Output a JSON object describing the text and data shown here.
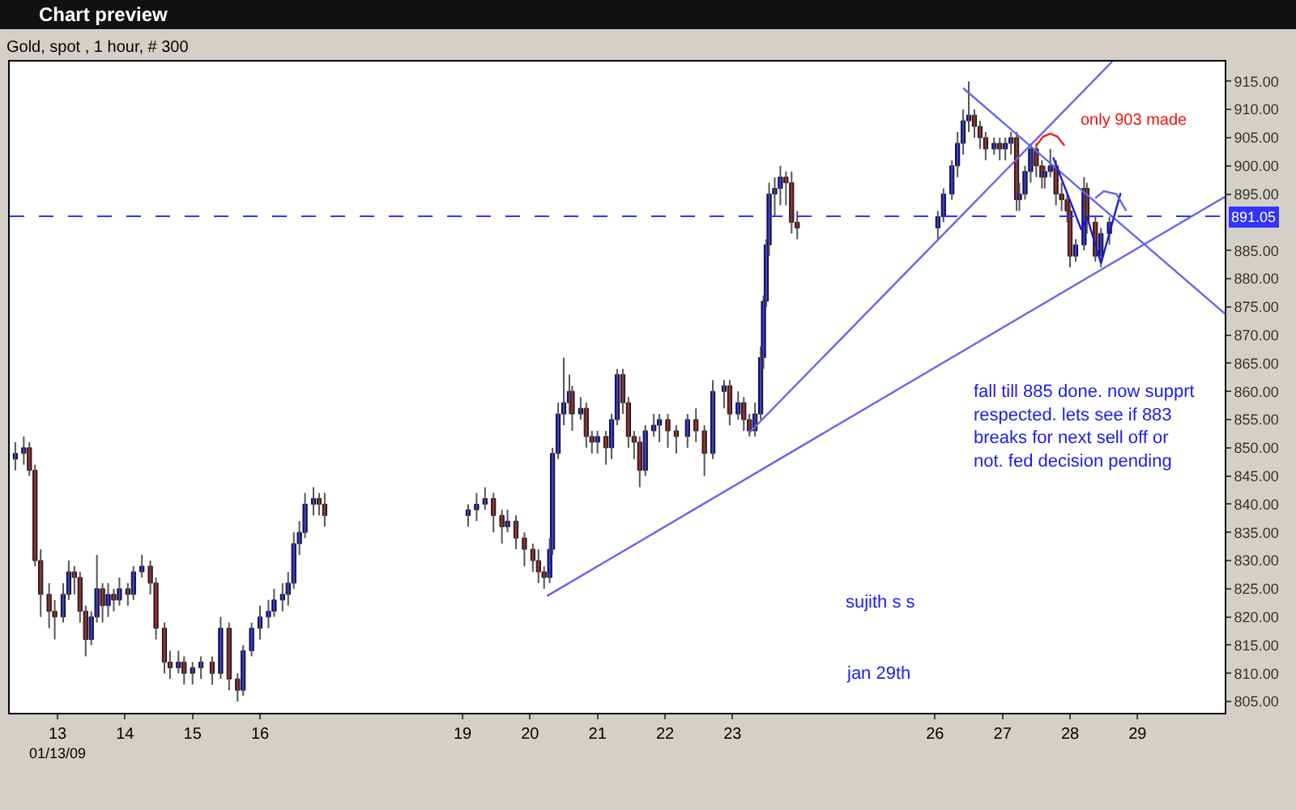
{
  "chart_data": {
    "type": "candlestick",
    "title": "Chart preview",
    "subtitle": "Gold, spot , 1 hour, # 300",
    "annotations": [
      "only 903 made",
      "fall till 885 done. now supprt\nrespected. lets see if 883\nbreaks for next sell off or\nnot. fed decision pending",
      "sujith s s",
      "jan 29th",
      "01/13/09"
    ],
    "x": [
      "--01-12T09:00",
      "--01-12T12:00",
      "--01-12T14:00",
      "--01-12T16:00",
      "--01-12T18:00",
      "--01-12T21:00",
      "--01-12T23:00",
      "--01-13T02:00",
      "--01-13T04:00",
      "--01-13T06:00",
      "--01-13T08:00",
      "--01-13T10:00",
      "--01-13T12:00",
      "--01-13T14:00",
      "--01-13T16:00",
      "--01-13T18:00",
      "--01-13T20:00",
      "--01-13T22:00",
      "--01-14T01:00",
      "--01-14T03:00",
      "--01-14T06:00",
      "--01-14T09:00",
      "--01-14T11:00",
      "--01-14T14:00",
      "--01-14T16:00",
      "--01-14T19:00",
      "--01-14T21:00",
      "--01-15T00:00",
      "--01-15T03:00",
      "--01-15T07:00",
      "--01-15T10:00",
      "--01-15T13:00",
      "--01-15T16:00",
      "--01-15T18:00",
      "--01-15T21:00",
      "--01-16T00:00",
      "--01-16T03:00",
      "--01-16T05:00",
      "--01-16T08:00",
      "--01-16T10:00",
      "--01-16T12:00",
      "--01-16T14:00",
      "--01-16T16:00",
      "--01-16T19:00",
      "--01-16T21:00",
      "--01-16T23:00",
      "--01-19T02:00",
      "--01-19T05:00",
      "--01-19T08:00",
      "--01-19T11:00",
      "--01-19T14:00",
      "--01-19T16:00",
      "--01-19T19:00",
      "--01-19T22:00",
      "--01-20T01:00",
      "--01-20T03:00",
      "--01-20T05:00",
      "--01-20T07:00",
      "--01-20T08:00",
      "--01-20T10:00",
      "--01-20T12:00",
      "--01-20T14:00",
      "--01-20T15:00",
      "--01-20T18:00",
      "--01-20T20:00",
      "--01-20T22:00",
      "--01-21T00:00",
      "--01-21T03:00",
      "--01-21T05:00",
      "--01-21T07:00",
      "--01-21T09:00",
      "--01-21T11:00",
      "--01-21T13:00",
      "--01-21T15:00",
      "--01-21T17:00",
      "--01-21T20:00",
      "--01-21T22:00",
      "--01-22T01:00",
      "--01-22T04:00",
      "--01-22T08:00",
      "--01-22T11:00",
      "--01-22T14:00",
      "--01-22T17:00",
      "--01-22T21:00",
      "--01-22T23:00",
      "--01-23T02:00",
      "--01-23T04:00",
      "--01-23T06:00",
      "--01-23T08:00",
      "--01-23T10:00",
      "--01-23T11:00",
      "--01-23T12:00",
      "--01-23T13:00",
      "--01-23T15:00",
      "--01-23T17:00",
      "--01-23T19:00",
      "--01-23T21:00",
      "--01-23T23:00",
      "--01-26T01:00",
      "--01-26T03:00",
      "--01-26T06:00",
      "--01-26T08:00",
      "--01-26T10:00",
      "--01-26T12:00",
      "--01-26T14:00",
      "--01-26T16:00",
      "--01-26T18:00",
      "--01-26T21:00",
      "--01-26T23:00",
      "--01-27T01:00",
      "--01-27T03:00",
      "--01-27T05:00",
      "--01-27T06:00",
      "--01-27T08:00",
      "--01-27T10:00",
      "--01-27T12:00",
      "--01-27T14:00",
      "--01-27T15:00",
      "--01-27T17:00",
      "--01-27T19:00",
      "--01-27T21:00",
      "--01-27T23:00",
      "--01-28T00:00",
      "--01-28T02:00",
      "--01-28T05:00",
      "--01-28T06:00",
      "--01-28T09:00",
      "--01-28T11:00",
      "--01-28T14:00"
    ],
    "ohlc": [
      [
        848,
        851,
        846,
        849
      ],
      [
        849,
        852,
        847,
        850
      ],
      [
        850,
        851,
        845,
        846
      ],
      [
        846,
        847,
        829,
        830
      ],
      [
        830,
        832,
        820,
        824
      ],
      [
        824,
        826,
        818,
        821
      ],
      [
        821,
        823,
        816,
        820
      ],
      [
        820,
        826,
        819,
        824
      ],
      [
        824,
        830,
        823,
        828
      ],
      [
        828,
        829,
        824,
        827
      ],
      [
        827,
        828,
        819,
        821
      ],
      [
        821,
        822,
        813,
        816
      ],
      [
        816,
        821,
        815,
        820
      ],
      [
        820,
        831,
        819,
        825
      ],
      [
        825,
        826,
        819,
        822
      ],
      [
        822,
        826,
        820,
        824
      ],
      [
        824,
        825,
        821,
        823
      ],
      [
        823,
        827,
        822,
        825
      ],
      [
        825,
        826,
        822,
        824
      ],
      [
        824,
        829,
        823,
        828
      ],
      [
        828,
        831,
        827,
        829
      ],
      [
        829,
        830,
        824,
        826
      ],
      [
        826,
        827,
        816,
        818
      ],
      [
        818,
        819,
        810,
        812
      ],
      [
        812,
        814,
        809,
        811
      ],
      [
        811,
        814,
        810,
        812
      ],
      [
        812,
        813,
        808,
        810
      ],
      [
        810,
        812,
        808,
        811
      ],
      [
        811,
        813,
        809,
        812
      ],
      [
        812,
        813,
        808,
        810
      ],
      [
        810,
        820,
        809,
        818
      ],
      [
        818,
        819,
        807,
        809
      ],
      [
        809,
        810,
        805,
        807
      ],
      [
        807,
        815,
        806,
        814
      ],
      [
        814,
        819,
        813,
        818
      ],
      [
        818,
        822,
        816,
        820
      ],
      [
        820,
        823,
        818,
        821
      ],
      [
        821,
        825,
        820,
        823
      ],
      [
        823,
        826,
        821,
        824
      ],
      [
        824,
        828,
        822,
        826
      ],
      [
        826,
        835,
        825,
        833
      ],
      [
        833,
        837,
        831,
        835
      ],
      [
        835,
        842,
        834,
        840
      ],
      [
        840,
        843,
        838,
        841
      ],
      [
        841,
        842,
        838,
        840
      ],
      [
        840,
        842,
        836,
        838
      ],
      [
        838,
        840,
        836,
        839
      ],
      [
        839,
        842,
        837,
        840
      ],
      [
        840,
        843,
        839,
        841
      ],
      [
        841,
        842,
        835,
        838
      ],
      [
        838,
        839,
        833,
        836
      ],
      [
        836,
        839,
        835,
        837
      ],
      [
        837,
        838,
        832,
        834
      ],
      [
        834,
        835,
        829,
        832
      ],
      [
        832,
        833,
        828,
        830
      ],
      [
        830,
        832,
        826,
        828
      ],
      [
        828,
        829,
        825,
        827
      ],
      [
        827,
        834,
        826,
        832
      ],
      [
        832,
        850,
        831,
        849
      ],
      [
        849,
        858,
        848,
        856
      ],
      [
        856,
        866,
        854,
        858
      ],
      [
        858,
        863,
        856,
        860
      ],
      [
        860,
        861,
        853,
        856
      ],
      [
        856,
        859,
        855,
        857
      ],
      [
        857,
        858,
        850,
        852
      ],
      [
        852,
        853,
        849,
        851
      ],
      [
        851,
        853,
        849,
        852
      ],
      [
        852,
        853,
        847,
        850
      ],
      [
        850,
        856,
        848,
        855
      ],
      [
        855,
        864,
        854,
        863
      ],
      [
        863,
        864,
        856,
        858
      ],
      [
        858,
        859,
        850,
        852
      ],
      [
        852,
        853,
        848,
        851
      ],
      [
        851,
        852,
        843,
        846
      ],
      [
        846,
        854,
        845,
        853
      ],
      [
        853,
        856,
        852,
        854
      ],
      [
        854,
        856,
        851,
        855
      ],
      [
        855,
        856,
        850,
        853
      ],
      [
        853,
        854,
        849,
        852
      ],
      [
        852,
        856,
        850,
        855
      ],
      [
        855,
        857,
        851,
        853
      ],
      [
        853,
        854,
        845,
        849
      ],
      [
        849,
        862,
        848,
        860
      ],
      [
        860,
        862,
        857,
        861
      ],
      [
        861,
        862,
        854,
        856
      ],
      [
        856,
        860,
        855,
        858
      ],
      [
        858,
        859,
        853,
        855
      ],
      [
        855,
        856,
        852,
        853
      ],
      [
        853,
        858,
        852,
        856
      ],
      [
        856,
        868,
        855,
        866
      ],
      [
        866,
        877,
        864,
        876
      ],
      [
        876,
        887,
        875,
        886
      ],
      [
        886,
        897,
        884,
        895
      ],
      [
        895,
        898,
        891,
        896
      ],
      [
        896,
        900,
        893,
        898
      ],
      [
        898,
        899,
        893,
        897
      ],
      [
        897,
        899,
        888,
        890
      ],
      [
        890,
        892,
        887,
        889
      ],
      [
        889,
        892,
        887,
        891
      ],
      [
        891,
        896,
        890,
        895
      ],
      [
        895,
        901,
        894,
        900
      ],
      [
        900,
        906,
        898,
        904
      ],
      [
        904,
        910,
        902,
        908
      ],
      [
        908,
        915,
        906,
        909
      ],
      [
        909,
        910,
        905,
        907
      ],
      [
        907,
        908,
        903,
        905
      ],
      [
        905,
        906,
        901,
        903
      ],
      [
        903,
        905,
        902,
        904
      ],
      [
        904,
        905,
        901,
        903
      ],
      [
        903,
        905,
        901,
        904
      ],
      [
        904,
        906,
        902,
        905
      ],
      [
        905,
        906,
        892,
        894
      ],
      [
        894,
        897,
        892,
        895
      ],
      [
        895,
        900,
        894,
        899
      ],
      [
        899,
        904,
        897,
        903
      ],
      [
        903,
        904,
        898,
        900
      ],
      [
        900,
        901,
        896,
        898
      ],
      [
        898,
        900,
        896,
        899
      ],
      [
        899,
        903,
        898,
        900
      ],
      [
        900,
        901,
        893,
        895
      ],
      [
        895,
        897,
        892,
        894
      ],
      [
        894,
        895,
        890,
        892
      ],
      [
        892,
        893,
        882,
        884
      ],
      [
        884,
        887,
        883,
        886
      ],
      [
        886,
        898,
        885,
        896
      ],
      [
        896,
        897,
        888,
        890
      ],
      [
        890,
        891,
        883,
        884
      ],
      [
        884,
        889,
        882,
        888
      ],
      [
        888,
        891,
        886,
        890
      ]
    ],
    "series": [
      {
        "type": "line",
        "color": "#6666ee",
        "x": [
          "--01-20T06:00",
          "--01-30T07:00"
        ],
        "values": [
          823.7,
          894.5
        ]
      },
      {
        "type": "line",
        "color": "#6666ee",
        "x": [
          "--01-23T06:00",
          "--01-28T15:00"
        ],
        "values": [
          852.7,
          918.5
        ]
      },
      {
        "type": "line",
        "color": "#6666ee",
        "x": [
          "--01-26T10:00",
          "--01-30T07:00"
        ],
        "values": [
          913.8,
          873.8
        ]
      },
      {
        "type": "line",
        "color": "#1a1ad6",
        "x": [
          "--01-27T18:00",
          "--01-28T04:00",
          "--01-28T06:00",
          "--01-28T11:00",
          "--01-28T18:00"
        ],
        "values": [
          901.5,
          888.7,
          891,
          882.7,
          895.2
        ]
      },
      {
        "type": "line",
        "color": "#6666ee",
        "x": [
          "--01-28T09:00",
          "--01-28T12:00",
          "--01-28T16:30",
          "--01-28T20:00"
        ],
        "values": [
          894.3,
          895.5,
          895,
          892
        ]
      },
      {
        "type": "line",
        "color": "#ee2222",
        "x": [
          "--01-27T12:00",
          "--01-27T14:30",
          "--01-27T17:00",
          "--01-27T19:30",
          "--01-27T22:00"
        ],
        "values": [
          903.6,
          905.2,
          905.7,
          905.2,
          903.6
        ]
      }
    ],
    "xlim": [
      "--01-12T07:00",
      "--01-30T07:00"
    ],
    "xticks": [
      {
        "value": "--01-13",
        "label": "13"
      },
      {
        "value": "--01-14",
        "label": "14"
      },
      {
        "value": "--01-15",
        "label": "15"
      },
      {
        "value": "--01-16",
        "label": "16"
      },
      {
        "value": "--01-19",
        "label": "19"
      },
      {
        "value": "--01-20",
        "label": "20"
      },
      {
        "value": "--01-21",
        "label": "21"
      },
      {
        "value": "--01-22",
        "label": "22"
      },
      {
        "value": "--01-23",
        "label": "23"
      },
      {
        "value": "--01-26",
        "label": "26"
      },
      {
        "value": "--01-27",
        "label": "27"
      },
      {
        "value": "--01-28",
        "label": "28"
      },
      {
        "value": "--01-29",
        "label": "29"
      }
    ],
    "ylim": [
      803,
      918.5
    ],
    "yticks": [
      {
        "value": 805,
        "label": "805.00"
      },
      {
        "value": 810,
        "label": "810.00"
      },
      {
        "value": 815,
        "label": "815.00"
      },
      {
        "value": 820,
        "label": "820.00"
      },
      {
        "value": 825,
        "label": "825.00"
      },
      {
        "value": 830,
        "label": "830.00"
      },
      {
        "value": 835,
        "label": "835.00"
      },
      {
        "value": 840,
        "label": "840.00"
      },
      {
        "value": 845,
        "label": "845.00"
      },
      {
        "value": 850,
        "label": "850.00"
      },
      {
        "value": 855,
        "label": "855.00"
      },
      {
        "value": 860,
        "label": "860.00"
      },
      {
        "value": 865,
        "label": "865.00"
      },
      {
        "value": 870,
        "label": "870.00"
      },
      {
        "value": 875,
        "label": "875.00"
      },
      {
        "value": 880,
        "label": "880.00"
      },
      {
        "value": 885,
        "label": "885.00"
      },
      {
        "value": 895,
        "label": "895.00"
      },
      {
        "value": 900,
        "label": "900.00"
      },
      {
        "value": 905,
        "label": "905.00"
      },
      {
        "value": 910,
        "label": "910.00"
      },
      {
        "value": 915,
        "label": "915.00"
      }
    ],
    "ref_lines": [
      {
        "axis": "y",
        "value": 891.05,
        "label": "891.05",
        "color": "#3333ff",
        "line_style": "dashed"
      }
    ],
    "grid": false
  }
}
